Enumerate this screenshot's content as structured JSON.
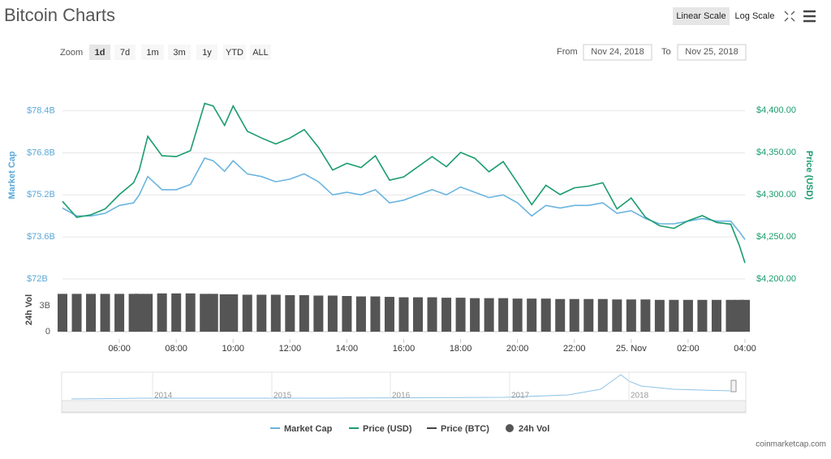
{
  "header": {
    "title": "Bitcoin Charts",
    "buttons": [
      "Linear Scale",
      "Log Scale"
    ]
  },
  "zoom": {
    "label": "Zoom",
    "options": [
      "1d",
      "7d",
      "1m",
      "3m",
      "1y",
      "YTD",
      "ALL"
    ],
    "active": "1d"
  },
  "range": {
    "from_label": "From",
    "from": "Nov 24, 2018",
    "to_label": "To",
    "to": "Nov 25, 2018"
  },
  "chart_data": [
    {
      "type": "line",
      "x": [
        4.0,
        4.5,
        5.0,
        5.5,
        6.0,
        6.5,
        6.7,
        7.0,
        7.5,
        8.0,
        8.5,
        9.0,
        9.3,
        9.7,
        10.0,
        10.5,
        11.0,
        11.5,
        12.0,
        12.5,
        13.0,
        13.5,
        14.0,
        14.5,
        15.0,
        15.5,
        16.0,
        16.5,
        17.0,
        17.5,
        18.0,
        18.5,
        19.0,
        19.5,
        20.0,
        20.5,
        21.0,
        21.5,
        22.0,
        22.5,
        23.0,
        23.5,
        24.0,
        24.5,
        25.0,
        25.5,
        26.0,
        26.5,
        27.0,
        27.5,
        27.8,
        28.0
      ],
      "xlim": [
        4.0,
        28.0
      ],
      "xticks": [
        {
          "value": 6,
          "label": "06:00"
        },
        {
          "value": 8,
          "label": "08:00"
        },
        {
          "value": 10,
          "label": "10:00"
        },
        {
          "value": 12,
          "label": "12:00"
        },
        {
          "value": 14,
          "label": "14:00"
        },
        {
          "value": 16,
          "label": "16:00"
        },
        {
          "value": 18,
          "label": "18:00"
        },
        {
          "value": 20,
          "label": "20:00"
        },
        {
          "value": 22,
          "label": "22:00"
        },
        {
          "value": 24,
          "label": "25. Nov"
        },
        {
          "value": 26,
          "label": "02:00"
        },
        {
          "value": 28,
          "label": "04:00"
        }
      ],
      "ylabel": "Market Cap",
      "ylim": [
        72,
        79.1
      ],
      "yticks": [
        {
          "value": 72,
          "label": "$72B"
        },
        {
          "value": 73.6,
          "label": "$73.6B"
        },
        {
          "value": 75.2,
          "label": "$75.2B"
        },
        {
          "value": 76.8,
          "label": "$76.8B"
        },
        {
          "value": 78.4,
          "label": "$78.4B"
        }
      ],
      "y2label": "Price (USD)",
      "y2lim": [
        4200,
        4421
      ],
      "y2ticks": [
        {
          "value": 4200,
          "label": "$4,200.00"
        },
        {
          "value": 4250,
          "label": "$4,250.00"
        },
        {
          "value": 4300,
          "label": "$4,300.00"
        },
        {
          "value": 4350,
          "label": "$4,350.00"
        },
        {
          "value": 4400,
          "label": "$4,400.00"
        }
      ],
      "grid": true,
      "series": [
        {
          "name": "Market Cap",
          "color": "#6ab4e0",
          "axis": "y",
          "values": [
            74.7,
            74.4,
            74.4,
            74.5,
            74.8,
            74.9,
            75.2,
            75.9,
            75.4,
            75.4,
            75.6,
            76.6,
            76.5,
            76.1,
            76.5,
            76.0,
            75.9,
            75.7,
            75.8,
            76.0,
            75.7,
            75.2,
            75.3,
            75.2,
            75.4,
            74.9,
            75.0,
            75.2,
            75.4,
            75.2,
            75.5,
            75.3,
            75.1,
            75.2,
            74.9,
            74.4,
            74.8,
            74.7,
            74.8,
            74.8,
            74.9,
            74.5,
            74.6,
            74.3,
            74.1,
            74.1,
            74.2,
            74.3,
            74.2,
            74.2,
            73.8,
            73.5
          ]
        },
        {
          "name": "Price (USD)",
          "color": "#1a9c6c",
          "axis": "y2",
          "values": [
            4292,
            4273,
            4276,
            4283,
            4300,
            4314,
            4329,
            4369,
            4346,
            4345,
            4352,
            4408,
            4405,
            4382,
            4405,
            4375,
            4367,
            4360,
            4367,
            4377,
            4356,
            4329,
            4337,
            4332,
            4346,
            4317,
            4321,
            4333,
            4345,
            4333,
            4350,
            4343,
            4327,
            4339,
            4314,
            4288,
            4311,
            4300,
            4308,
            4310,
            4314,
            4283,
            4296,
            4273,
            4263,
            4260,
            4269,
            4275,
            4267,
            4265,
            4240,
            4219
          ]
        }
      ],
      "other_legend": [
        {
          "name": "Price (BTC)",
          "color": "#444444"
        }
      ]
    },
    {
      "type": "bar",
      "x": [
        4.0,
        4.5,
        5.0,
        5.5,
        6.0,
        6.5,
        6.7,
        7.0,
        7.5,
        8.0,
        8.5,
        9.0,
        9.3,
        9.7,
        10.0,
        10.5,
        11.0,
        11.5,
        12.0,
        12.5,
        13.0,
        13.5,
        14.0,
        14.5,
        15.0,
        15.5,
        16.0,
        16.5,
        17.0,
        17.5,
        18.0,
        18.5,
        19.0,
        19.5,
        20.0,
        20.5,
        21.0,
        21.5,
        22.0,
        22.5,
        23.0,
        23.5,
        24.0,
        24.5,
        25.0,
        25.5,
        26.0,
        26.5,
        27.0,
        27.5,
        27.8,
        28.0
      ],
      "xlim": [
        4.0,
        28.0
      ],
      "ylabel": "24h Vol",
      "ylim": [
        0,
        5
      ],
      "yticks": [
        0,
        {
          "value": 3,
          "label": "3B"
        }
      ],
      "series": [
        {
          "name": "24h Vol",
          "color": "#555555",
          "values": [
            4.4,
            4.4,
            4.4,
            4.4,
            4.4,
            4.4,
            4.4,
            4.4,
            4.45,
            4.45,
            4.45,
            4.4,
            4.4,
            4.35,
            4.35,
            4.3,
            4.3,
            4.3,
            4.25,
            4.25,
            4.2,
            4.2,
            4.15,
            4.1,
            4.1,
            4.05,
            4.0,
            4.0,
            4.0,
            3.95,
            3.95,
            3.9,
            3.9,
            3.9,
            3.85,
            3.85,
            3.85,
            3.8,
            3.8,
            3.8,
            3.8,
            3.75,
            3.75,
            3.75,
            3.7,
            3.7,
            3.7,
            3.7,
            3.7,
            3.7,
            3.7,
            3.7
          ]
        }
      ]
    }
  ],
  "navigator": {
    "labels": [
      "2014",
      "2015",
      "2016",
      "2017",
      "2018"
    ]
  },
  "credit": "coinmarketcap.com"
}
